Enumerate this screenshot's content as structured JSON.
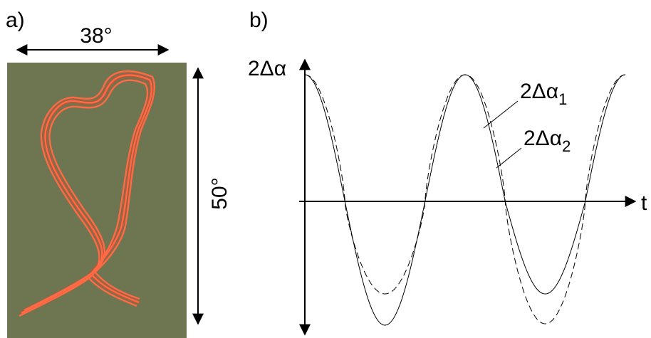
{
  "panel_a": {
    "label": "a)",
    "width_label": "38°",
    "height_label": "50°"
  },
  "panel_b": {
    "label": "b)",
    "y_label": "2Δα",
    "x_label": "t",
    "curves": [
      {
        "label": "2Δα",
        "subscript": "1"
      },
      {
        "label": "2Δα",
        "subscript": "2"
      }
    ]
  }
}
